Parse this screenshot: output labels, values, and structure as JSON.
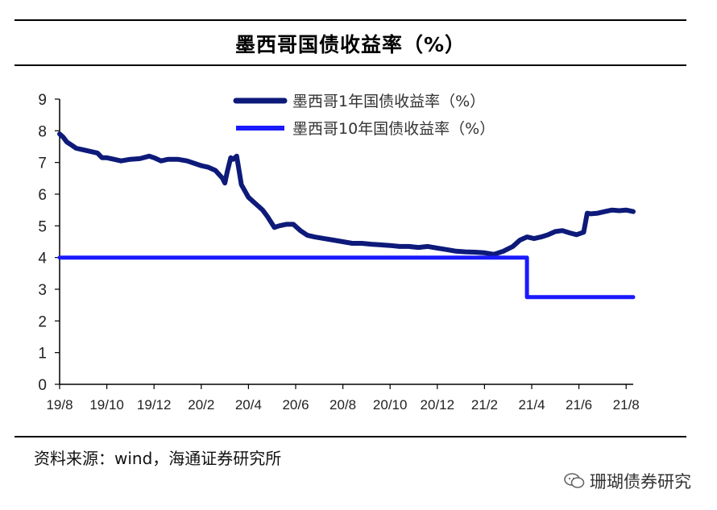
{
  "source_text": "资料来源：wind，海通证券研究所",
  "watermark_text": "珊瑚债券研究",
  "colors": {
    "series_1y": "#0d1a7a",
    "series_10y": "#1a1aff",
    "axis": "#000000"
  },
  "chart_data": {
    "type": "line",
    "title": "墨西哥国债收益率（%）",
    "xlabel": "",
    "ylabel": "",
    "ylim": [
      0,
      9
    ],
    "yticks": [
      "0",
      "1",
      "2",
      "3",
      "4",
      "5",
      "6",
      "7",
      "8",
      "9"
    ],
    "x_range": [
      0,
      24.3
    ],
    "x_tick_labels": [
      "19/8",
      "19/10",
      "19/12",
      "20/2",
      "20/4",
      "20/6",
      "20/8",
      "20/10",
      "20/12",
      "21/2",
      "21/4",
      "21/6",
      "21/8"
    ],
    "x_tick_positions": [
      0,
      2,
      4,
      6,
      8,
      10,
      12,
      14,
      16,
      18,
      20,
      22,
      24
    ],
    "legend": "top-center",
    "series": [
      {
        "name": "墨西哥1年国债收益率（%）",
        "x": [
          0,
          0.15,
          0.3,
          0.5,
          0.7,
          1.0,
          1.3,
          1.6,
          1.8,
          2.0,
          2.3,
          2.6,
          3.0,
          3.4,
          3.8,
          4.0,
          4.3,
          4.6,
          5.0,
          5.4,
          5.8,
          6.0,
          6.3,
          6.6,
          6.9,
          7.0,
          7.1,
          7.25,
          7.35,
          7.5,
          7.7,
          8.0,
          8.3,
          8.6,
          8.8,
          9.1,
          9.3,
          9.6,
          9.9,
          10.2,
          10.5,
          10.8,
          11.2,
          11.6,
          12.0,
          12.4,
          12.8,
          13.2,
          13.6,
          14.0,
          14.4,
          14.8,
          15.2,
          15.6,
          16.0,
          16.4,
          16.8,
          17.2,
          17.6,
          18.0,
          18.4,
          18.8,
          19.2,
          19.5,
          19.8,
          20.1,
          20.4,
          20.7,
          21.0,
          21.3,
          21.6,
          21.9,
          22.2,
          22.35,
          22.5,
          22.8,
          23.1,
          23.4,
          23.7,
          24.0,
          24.3
        ],
        "values": [
          7.9,
          7.8,
          7.65,
          7.55,
          7.45,
          7.4,
          7.35,
          7.3,
          7.15,
          7.15,
          7.1,
          7.05,
          7.1,
          7.12,
          7.2,
          7.15,
          7.05,
          7.1,
          7.1,
          7.05,
          6.95,
          6.9,
          6.85,
          6.75,
          6.5,
          6.35,
          6.7,
          7.15,
          7.1,
          7.2,
          6.3,
          5.9,
          5.7,
          5.5,
          5.3,
          4.95,
          5.0,
          5.05,
          5.05,
          4.85,
          4.7,
          4.65,
          4.6,
          4.55,
          4.5,
          4.45,
          4.45,
          4.42,
          4.4,
          4.38,
          4.35,
          4.35,
          4.32,
          4.35,
          4.3,
          4.25,
          4.2,
          4.18,
          4.17,
          4.15,
          4.1,
          4.2,
          4.35,
          4.55,
          4.65,
          4.6,
          4.65,
          4.72,
          4.82,
          4.85,
          4.78,
          4.72,
          4.8,
          5.4,
          5.38,
          5.4,
          5.45,
          5.5,
          5.48,
          5.5,
          5.45
        ]
      },
      {
        "name": "墨西哥10年国债收益率（%）",
        "x": [
          0,
          19.8,
          19.8,
          24.3
        ],
        "values": [
          4.0,
          4.0,
          2.75,
          2.75
        ]
      }
    ]
  }
}
